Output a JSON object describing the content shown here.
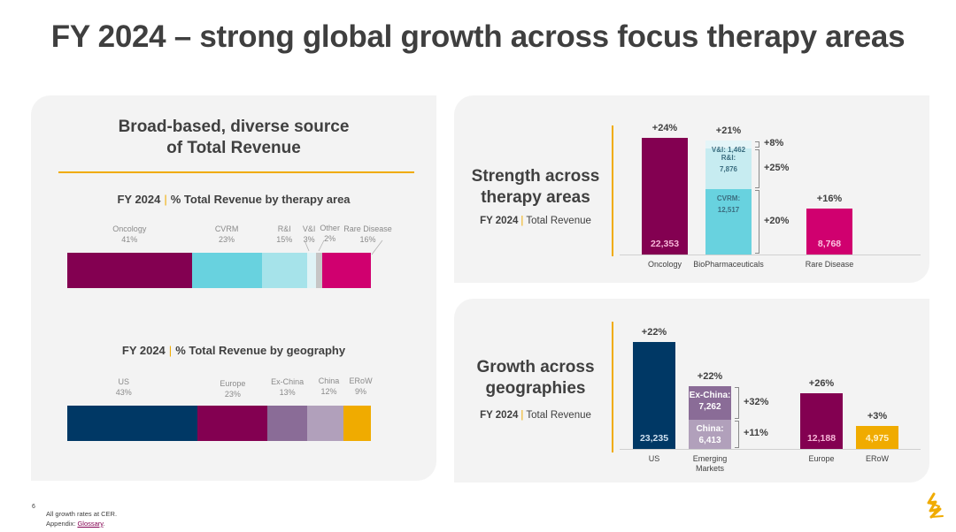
{
  "title": "FY 2024 – strong global growth across focus therapy areas",
  "left_panel": {
    "heading_line1": "Broad-based, diverse source",
    "heading_line2": "of Total Revenue",
    "therapy_subtitle_bold": "FY 2024",
    "therapy_subtitle_text": "% Total Revenue by therapy area",
    "geo_subtitle_bold": "FY 2024",
    "geo_subtitle_text": "% Total Revenue by geography"
  },
  "top_right_panel": {
    "title_line1": "Strength across",
    "title_line2": "therapy areas",
    "sub_bold": "FY 2024",
    "sub_text": "Total Revenue"
  },
  "bottom_right_panel": {
    "title_line1": "Growth across",
    "title_line2": "geographies",
    "sub_bold": "FY 2024",
    "sub_text": "Total Revenue"
  },
  "footer": {
    "page_number": "6",
    "note": "All growth rates at CER.",
    "appendix_prefix": "Appendix: ",
    "glossary_link": "Glossary",
    "appendix_suffix": "."
  },
  "chart_data": [
    {
      "type": "bar",
      "orientation": "horizontal-stacked-100",
      "title": "FY 2024 | % Total Revenue by therapy area",
      "categories": [
        "Oncology",
        "CVRM",
        "R&I",
        "V&I",
        "Other",
        "Rare Disease"
      ],
      "values": [
        41,
        23,
        15,
        3,
        2,
        16
      ],
      "labels": [
        "41%",
        "23%",
        "15%",
        "3%",
        "2%",
        "16%"
      ],
      "colors": [
        "#830051",
        "#68d2df",
        "#a6e3ea",
        "#dff3f6",
        "#c6c6c6",
        "#d0006f"
      ]
    },
    {
      "type": "bar",
      "orientation": "horizontal-stacked-100",
      "title": "FY 2024 | % Total Revenue by geography",
      "categories": [
        "US",
        "Europe",
        "Ex-China",
        "China",
        "ERoW"
      ],
      "values": [
        43,
        23,
        13,
        12,
        9
      ],
      "labels": [
        "43%",
        "23%",
        "13%",
        "12%",
        "9%"
      ],
      "colors": [
        "#003865",
        "#830051",
        "#8a6c97",
        "#b1a0bb",
        "#f0ab00"
      ]
    },
    {
      "type": "bar",
      "title": "Strength across therapy areas — FY 2024 Total Revenue",
      "categories": [
        "Oncology",
        "BioPharmaceuticals",
        "Rare Disease"
      ],
      "series": [
        {
          "category": "Oncology",
          "name": "Oncology",
          "value": 22353,
          "label": "22,353",
          "growth": "+24%",
          "color": "#830051",
          "text_color": "#f7b6d8"
        },
        {
          "category": "BioPharmaceuticals",
          "name": "CVRM",
          "value": 12517,
          "label": "CVRM:\n12,517",
          "growth": "+20%",
          "color": "#68d2df",
          "text_color": "#3c6e80"
        },
        {
          "category": "BioPharmaceuticals",
          "name": "R&I",
          "value": 7876,
          "label": "R&I:\n7,876",
          "growth": "+25%",
          "color": "#c7ecf1",
          "text_color": "#3c6e80"
        },
        {
          "category": "BioPharmaceuticals",
          "name": "V&I",
          "value": 1462,
          "label": "V&I: 1,462",
          "growth": "+8%",
          "color": "#e4f5f8",
          "text_color": "#3c6e80"
        },
        {
          "category": "Rare Disease",
          "name": "Rare Disease",
          "value": 8768,
          "label": "8,768",
          "growth": "+16%",
          "color": "#d0006f",
          "text_color": "#fbc4e0"
        }
      ],
      "column_growth": {
        "Oncology": "+24%",
        "BioPharmaceuticals": "+21%",
        "Rare Disease": "+16%"
      },
      "ylim": [
        0,
        22353
      ]
    },
    {
      "type": "bar",
      "title": "Growth across geographies — FY 2024 Total Revenue",
      "categories": [
        "US",
        "Emerging Markets",
        "Europe",
        "ERoW"
      ],
      "series": [
        {
          "category": "US",
          "name": "US",
          "value": 23235,
          "label": "23,235",
          "growth": "+22%",
          "color": "#003865",
          "text_color": "#cfe0f0"
        },
        {
          "category": "Emerging Markets",
          "name": "China",
          "value": 6413,
          "label": "China:\n6,413",
          "growth": "+11%",
          "color": "#b1a0bb",
          "text_color": "#ffffff"
        },
        {
          "category": "Emerging Markets",
          "name": "Ex-China",
          "value": 7262,
          "label": "Ex-China:\n7,262",
          "growth": "+32%",
          "color": "#8a6c97",
          "text_color": "#ffffff"
        },
        {
          "category": "Europe",
          "name": "Europe",
          "value": 12188,
          "label": "12,188",
          "growth": "+26%",
          "color": "#830051",
          "text_color": "#f7b6d8"
        },
        {
          "category": "ERoW",
          "name": "ERoW",
          "value": 4975,
          "label": "4,975",
          "growth": "+3%",
          "color": "#f0ab00",
          "text_color": "#fff3cc"
        }
      ],
      "column_growth": {
        "US": "+22%",
        "Emerging Markets": "+22%",
        "Europe": "+26%",
        "ERoW": "+3%"
      },
      "category_labels": [
        "US",
        "Emerging\nMarkets",
        "Europe",
        "ERoW"
      ],
      "ylim": [
        0,
        23235
      ]
    }
  ]
}
